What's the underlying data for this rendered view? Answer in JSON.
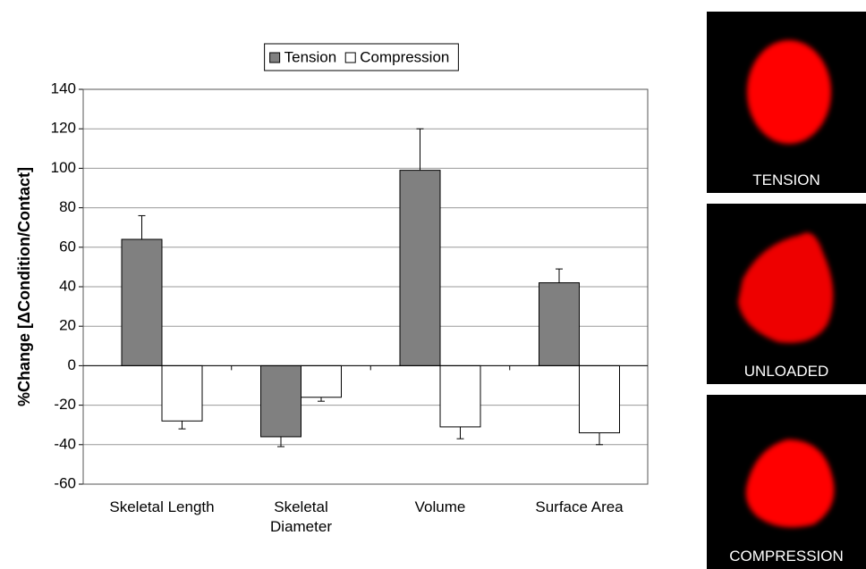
{
  "chart_data": {
    "type": "bar",
    "y_label": "%Change [ΔCondition/Contact]",
    "categories": [
      "Skeletal Length",
      "Skeletal Diameter",
      "Volume",
      "Surface Area"
    ],
    "series": [
      {
        "name": "Tension",
        "color": "#808080",
        "values": [
          64,
          -36,
          99,
          42
        ],
        "errors": [
          12,
          5,
          21,
          7
        ]
      },
      {
        "name": "Compression",
        "color": "#ffffff",
        "values": [
          -28,
          -16,
          -31,
          -34
        ],
        "errors": [
          4,
          2,
          6,
          6
        ]
      }
    ],
    "ylim": [
      -60,
      140
    ],
    "yticks": [
      -60,
      -40,
      -20,
      0,
      20,
      40,
      60,
      80,
      100,
      120,
      140
    ],
    "grid": true,
    "legend": "top"
  },
  "panels": [
    {
      "label": "TENSION"
    },
    {
      "label": "UNLOADED"
    },
    {
      "label": "COMPRESSION"
    }
  ]
}
